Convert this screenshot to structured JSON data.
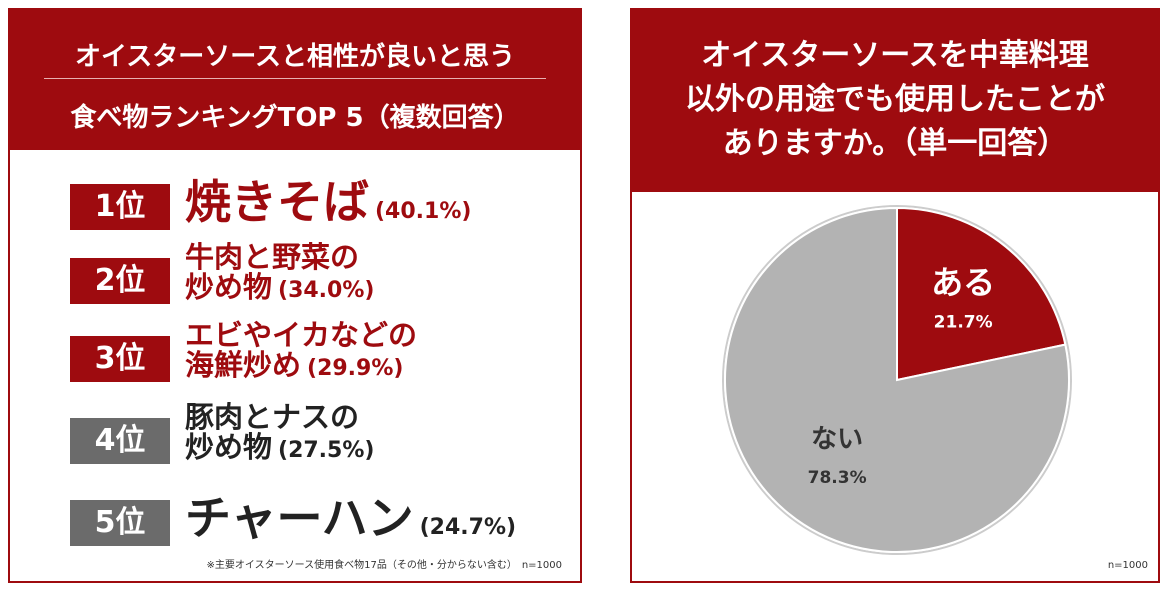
{
  "ranking": {
    "title_lines": [
      "オイスターソースと相性が良いと思う",
      "食べ物ランキングTOP 5（複数回答）"
    ],
    "items": [
      {
        "rank": "1位",
        "name_lines": [
          "焼きそば"
        ],
        "share": "(40.1%)"
      },
      {
        "rank": "2位",
        "name_lines": [
          "牛肉と野菜の",
          "炒め物"
        ],
        "share": "(34.0%)"
      },
      {
        "rank": "3位",
        "name_lines": [
          "エビやイカなどの",
          "海鮮炒め"
        ],
        "share": "(29.9%)"
      },
      {
        "rank": "4位",
        "name_lines": [
          "豚肉とナスの",
          "炒め物"
        ],
        "share": "(27.5%)"
      },
      {
        "rank": "5位",
        "name_lines": [
          "チャーハン"
        ],
        "share": "(24.7%)"
      }
    ],
    "note": "※主要オイスターソース使用食べ物17品（その他・分からない含む）　n=1000"
  },
  "chart_data": {
    "type": "pie",
    "title_lines": [
      "オイスターソースを中華料理",
      "以外の用途でも使用したことが",
      "ありますか。（単一回答）"
    ],
    "categories": [
      "ある",
      "ない"
    ],
    "values": [
      21.7,
      78.3
    ],
    "value_labels": [
      "21.7%",
      "78.3%"
    ],
    "colors": [
      "#9e0b0f",
      "#b3b3b3"
    ],
    "note": "n=1000"
  }
}
